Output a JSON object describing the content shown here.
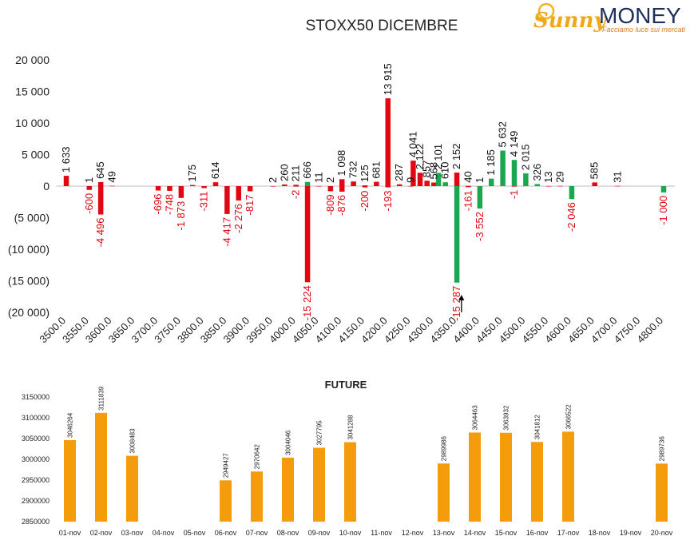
{
  "logo": {
    "brand_part1": "Sunny",
    "brand_part2": "MONEY",
    "tagline": "Facciamo luce sui mercati",
    "colors": {
      "sunny": "#f0a81b",
      "money": "#1f2f5c",
      "tagline": "#e07b1a"
    }
  },
  "colors": {
    "negative": "#e30613",
    "positive": "#19a84f",
    "future": "#f59c0c",
    "arrow": "#000000"
  },
  "chart_data": [
    {
      "type": "bar",
      "title": "STOXX50 DICEMBRE",
      "xlabel": "",
      "ylabel": "",
      "ylim": [
        -20000,
        20000
      ],
      "y_ticks": [
        20000,
        15000,
        10000,
        5000,
        0,
        -5000,
        -10000,
        -15000,
        -20000
      ],
      "y_tick_labels": [
        "20 000",
        "15 000",
        "10 000",
        "5 000",
        "0",
        "(5 000)",
        "(10 000)",
        "(15 000)",
        "(20 000)"
      ],
      "x_range": [
        3500,
        4800
      ],
      "x_ticks": [
        3500,
        3550,
        3600,
        3650,
        3700,
        3750,
        3800,
        3850,
        3900,
        3950,
        4000,
        4050,
        4100,
        4150,
        4200,
        4250,
        4300,
        4350,
        4400,
        4450,
        4500,
        4550,
        4600,
        4650,
        4700,
        4750,
        4800
      ],
      "x_tick_labels": [
        "3500.0",
        "3550.0",
        "3600.0",
        "3650.0",
        "3700.0",
        "3750.0",
        "3800.0",
        "3850.0",
        "3900.0",
        "3950.0",
        "4000.0",
        "4050.0",
        "4100.0",
        "4150.0",
        "4200.0",
        "4250.0",
        "4300.0",
        "4350.0",
        "4400.0",
        "4450.0",
        "4500.0",
        "4550.0",
        "4600.0",
        "4650.0",
        "4700.0",
        "4750.0",
        "4800.0"
      ],
      "grid": false,
      "annotations": [
        {
          "type": "arrow",
          "x": 4360,
          "direction": "up"
        }
      ],
      "series": [
        {
          "name": "Call",
          "points": [
            {
              "x": 3500,
              "y": 1633,
              "label": "1 633"
            },
            {
              "x": 3550,
              "y": 1,
              "label": "1"
            },
            {
              "x": 3575,
              "y": 645,
              "label": "645"
            },
            {
              "x": 3600,
              "y": 49,
              "label": "49"
            },
            {
              "x": 3775,
              "y": 175,
              "label": "175"
            },
            {
              "x": 3825,
              "y": 614,
              "label": "614"
            },
            {
              "x": 3950,
              "y": 2,
              "label": "2"
            },
            {
              "x": 3975,
              "y": 260,
              "label": "260"
            },
            {
              "x": 4000,
              "y": 211,
              "label": "211"
            },
            {
              "x": 4025,
              "y": 666,
              "label": "666"
            },
            {
              "x": 4050,
              "y": 11,
              "label": "11"
            },
            {
              "x": 4075,
              "y": 2,
              "label": "2"
            },
            {
              "x": 4100,
              "y": 1098,
              "label": "1 098"
            },
            {
              "x": 4125,
              "y": 732,
              "label": "732"
            },
            {
              "x": 4150,
              "y": 125,
              "label": "125"
            },
            {
              "x": 4175,
              "y": 681,
              "label": "681"
            },
            {
              "x": 4200,
              "y": 13915,
              "label": "13 915"
            },
            {
              "x": 4225,
              "y": 287,
              "label": "287"
            },
            {
              "x": 4250,
              "y": 9,
              "label": "9"
            },
            {
              "x": 4255,
              "y": 4041,
              "label": "4 041"
            },
            {
              "x": 4270,
              "y": 2122,
              "label": "2 122"
            },
            {
              "x": 4285,
              "y": 857,
              "label": "857"
            },
            {
              "x": 4300,
              "y": 568,
              "label": "568"
            },
            {
              "x": 4310,
              "y": 2101,
              "label": "2 101"
            },
            {
              "x": 4325,
              "y": 610,
              "label": "610"
            },
            {
              "x": 4350,
              "y": 2152,
              "label": "2 152"
            },
            {
              "x": 4375,
              "y": 40,
              "label": "40"
            },
            {
              "x": 4400,
              "y": 1,
              "label": "1"
            },
            {
              "x": 4425,
              "y": 1185,
              "label": "1 185"
            },
            {
              "x": 4450,
              "y": 5632,
              "label": "5 632"
            },
            {
              "x": 4475,
              "y": 4149,
              "label": "4 149"
            },
            {
              "x": 4500,
              "y": 2015,
              "label": "2 015"
            },
            {
              "x": 4525,
              "y": 326,
              "label": "326"
            },
            {
              "x": 4550,
              "y": 13,
              "label": "13"
            },
            {
              "x": 4575,
              "y": 29,
              "label": "29"
            },
            {
              "x": 4650,
              "y": 585,
              "label": "585"
            },
            {
              "x": 4700,
              "y": 31,
              "label": "31"
            }
          ]
        },
        {
          "name": "Put",
          "points": [
            {
              "x": 3550,
              "y": -600,
              "label": "-600"
            },
            {
              "x": 3575,
              "y": -4496,
              "label": "-4 496"
            },
            {
              "x": 3700,
              "y": -696,
              "label": "-696"
            },
            {
              "x": 3725,
              "y": -748,
              "label": "-748"
            },
            {
              "x": 3750,
              "y": -1873,
              "label": "-1 873"
            },
            {
              "x": 3800,
              "y": -311,
              "label": "-311"
            },
            {
              "x": 3850,
              "y": -4417,
              "label": "-4 417"
            },
            {
              "x": 3875,
              "y": -2276,
              "label": "-2 276"
            },
            {
              "x": 3900,
              "y": -817,
              "label": "-817"
            },
            {
              "x": 4000,
              "y": -2,
              "label": "-2"
            },
            {
              "x": 4025,
              "y": -15224,
              "label": "-15 224"
            },
            {
              "x": 4075,
              "y": -809,
              "label": "-809"
            },
            {
              "x": 4100,
              "y": -876,
              "label": "-876"
            },
            {
              "x": 4150,
              "y": -200,
              "label": "-200"
            },
            {
              "x": 4200,
              "y": -193,
              "label": "-193"
            },
            {
              "x": 4350,
              "y": -15287,
              "label": "-15 287"
            },
            {
              "x": 4375,
              "y": -161,
              "label": "-161"
            },
            {
              "x": 4400,
              "y": -3552,
              "label": "-3 552"
            },
            {
              "x": 4475,
              "y": -1,
              "label": "-1"
            },
            {
              "x": 4600,
              "y": -2046,
              "label": "-2 046"
            },
            {
              "x": 4800,
              "y": -1000,
              "label": "-1 000"
            }
          ]
        }
      ]
    },
    {
      "type": "bar",
      "title": "FUTURE",
      "xlabel": "",
      "ylabel": "",
      "ylim": [
        2850000,
        3150000
      ],
      "y_ticks": [
        2850000,
        2900000,
        2950000,
        3000000,
        3050000,
        3100000,
        3150000
      ],
      "y_tick_labels": [
        "2850000",
        "2900000",
        "2950000",
        "3000000",
        "3050000",
        "3100000",
        "3150000"
      ],
      "grid": false,
      "categories": [
        "01-nov",
        "02-nov",
        "03-nov",
        "04-nov",
        "05-nov",
        "06-nov",
        "07-nov",
        "08-nov",
        "09-nov",
        "10-nov",
        "11-nov",
        "12-nov",
        "13-nov",
        "14-nov",
        "15-nov",
        "16-nov",
        "17-nov",
        "18-nov",
        "19-nov",
        "20-nov"
      ],
      "values": [
        3046264,
        3111839,
        3008483,
        null,
        null,
        2949427,
        2970642,
        3004046,
        3027795,
        3041288,
        null,
        null,
        2989986,
        3064463,
        3063932,
        3041812,
        3066522,
        null,
        null,
        2989736
      ]
    }
  ]
}
